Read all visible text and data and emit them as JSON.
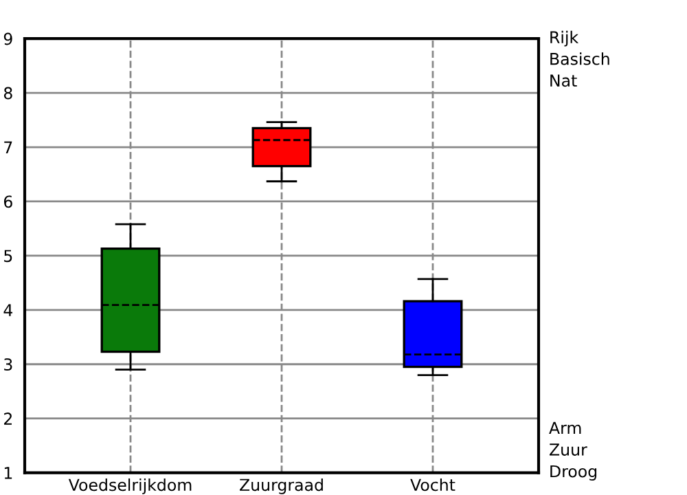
{
  "chart_data": {
    "type": "box",
    "categories": [
      "Voedselrijkdom",
      "Zuurgraad",
      "Vocht"
    ],
    "boxes": [
      {
        "low": 2.9,
        "q1": 3.23,
        "median": 4.09,
        "q3": 5.13,
        "high": 5.58
      },
      {
        "low": 6.37,
        "q1": 6.65,
        "median": 7.13,
        "q3": 7.35,
        "high": 7.46
      },
      {
        "low": 2.8,
        "q1": 2.95,
        "median": 3.18,
        "q3": 4.16,
        "high": 4.57
      }
    ],
    "colors": [
      "#0a7a0a",
      "#ff0000",
      "#0000ff"
    ],
    "ylim": [
      1,
      9
    ],
    "yticks": [
      1,
      2,
      3,
      4,
      5,
      6,
      7,
      8,
      9
    ],
    "grid": true,
    "annotations": [
      "Rijk",
      "Basisch",
      "Nat",
      "Arm",
      "Zuur",
      "Droog"
    ]
  }
}
